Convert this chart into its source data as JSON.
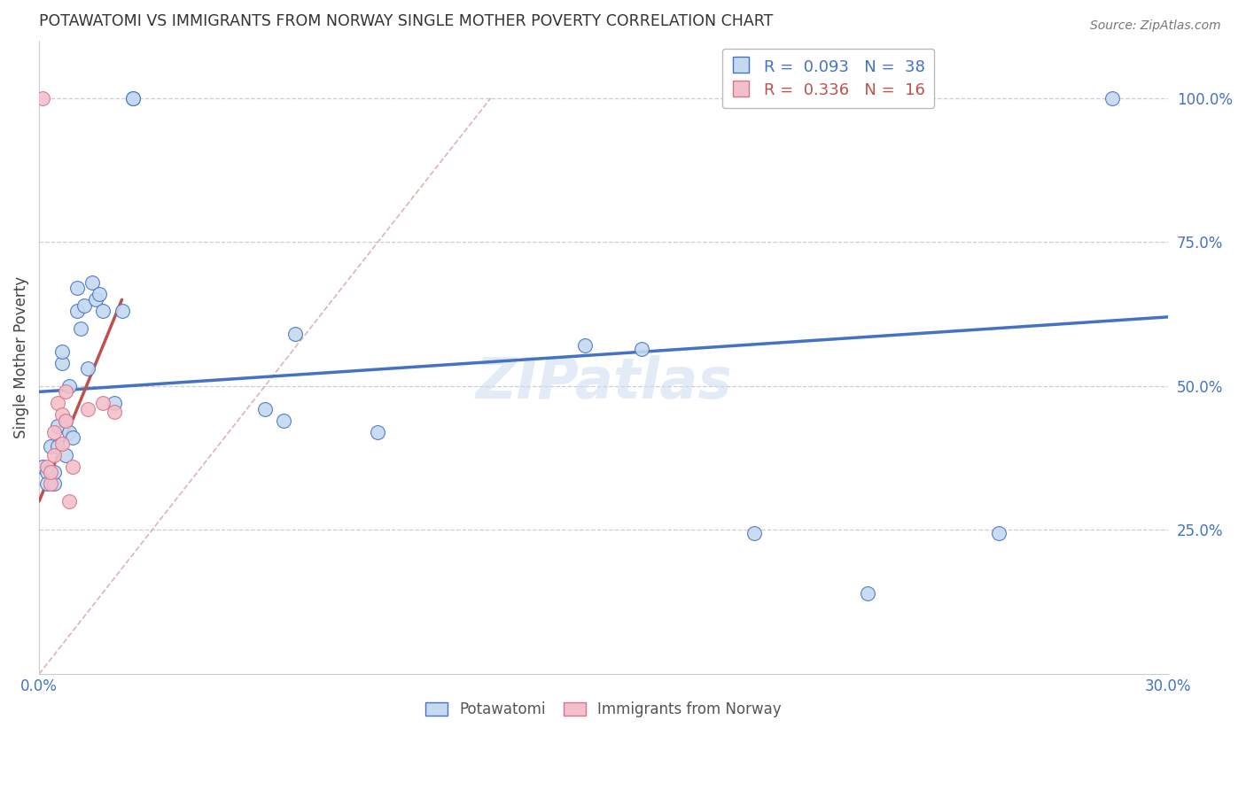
{
  "title": "POTAWATOMI VS IMMIGRANTS FROM NORWAY SINGLE MOTHER POVERTY CORRELATION CHART",
  "source": "Source: ZipAtlas.com",
  "ylabel": "Single Mother Poverty",
  "right_yticks": [
    "100.0%",
    "75.0%",
    "50.0%",
    "25.0%"
  ],
  "right_ytick_vals": [
    1.0,
    0.75,
    0.5,
    0.25
  ],
  "xlim": [
    0.0,
    0.3
  ],
  "ylim": [
    0.0,
    1.1
  ],
  "watermark": "ZIPatlas",
  "blue_color": "#c5d9f0",
  "pink_color": "#f2c0cb",
  "blue_edge_color": "#4472c4",
  "pink_edge_color": "#d9748a",
  "blue_line_color": "#4472c4",
  "pink_line_color": "#c0504d",
  "diag_line_color": "#d8a0a0",
  "blue_points_x": [
    0.001,
    0.002,
    0.002,
    0.003,
    0.004,
    0.004,
    0.005,
    0.005,
    0.006,
    0.006,
    0.007,
    0.007,
    0.008,
    0.008,
    0.009,
    0.01,
    0.01,
    0.011,
    0.012,
    0.013,
    0.014,
    0.015,
    0.016,
    0.017,
    0.02,
    0.022,
    0.025,
    0.025,
    0.06,
    0.065,
    0.068,
    0.09,
    0.145,
    0.16,
    0.19,
    0.22,
    0.255,
    0.285
  ],
  "blue_points_y": [
    0.36,
    0.35,
    0.33,
    0.395,
    0.33,
    0.35,
    0.395,
    0.43,
    0.54,
    0.56,
    0.38,
    0.44,
    0.42,
    0.5,
    0.41,
    0.63,
    0.67,
    0.6,
    0.64,
    0.53,
    0.68,
    0.65,
    0.66,
    0.63,
    0.47,
    0.63,
    1.0,
    1.0,
    0.46,
    0.44,
    0.59,
    0.42,
    0.57,
    0.565,
    0.245,
    0.14,
    0.245,
    1.0
  ],
  "pink_points_x": [
    0.001,
    0.002,
    0.003,
    0.003,
    0.004,
    0.004,
    0.005,
    0.006,
    0.006,
    0.007,
    0.007,
    0.008,
    0.009,
    0.013,
    0.017,
    0.02
  ],
  "pink_points_y": [
    1.0,
    0.36,
    0.33,
    0.35,
    0.38,
    0.42,
    0.47,
    0.4,
    0.45,
    0.44,
    0.49,
    0.3,
    0.36,
    0.46,
    0.47,
    0.455
  ],
  "blue_trend_x": [
    0.0,
    0.3
  ],
  "blue_trend_y": [
    0.49,
    0.62
  ],
  "pink_trend_x": [
    0.0,
    0.022
  ],
  "pink_trend_y": [
    0.3,
    0.65
  ],
  "diag_line_x": [
    0.0,
    0.12
  ],
  "diag_line_y": [
    0.0,
    1.0
  ]
}
